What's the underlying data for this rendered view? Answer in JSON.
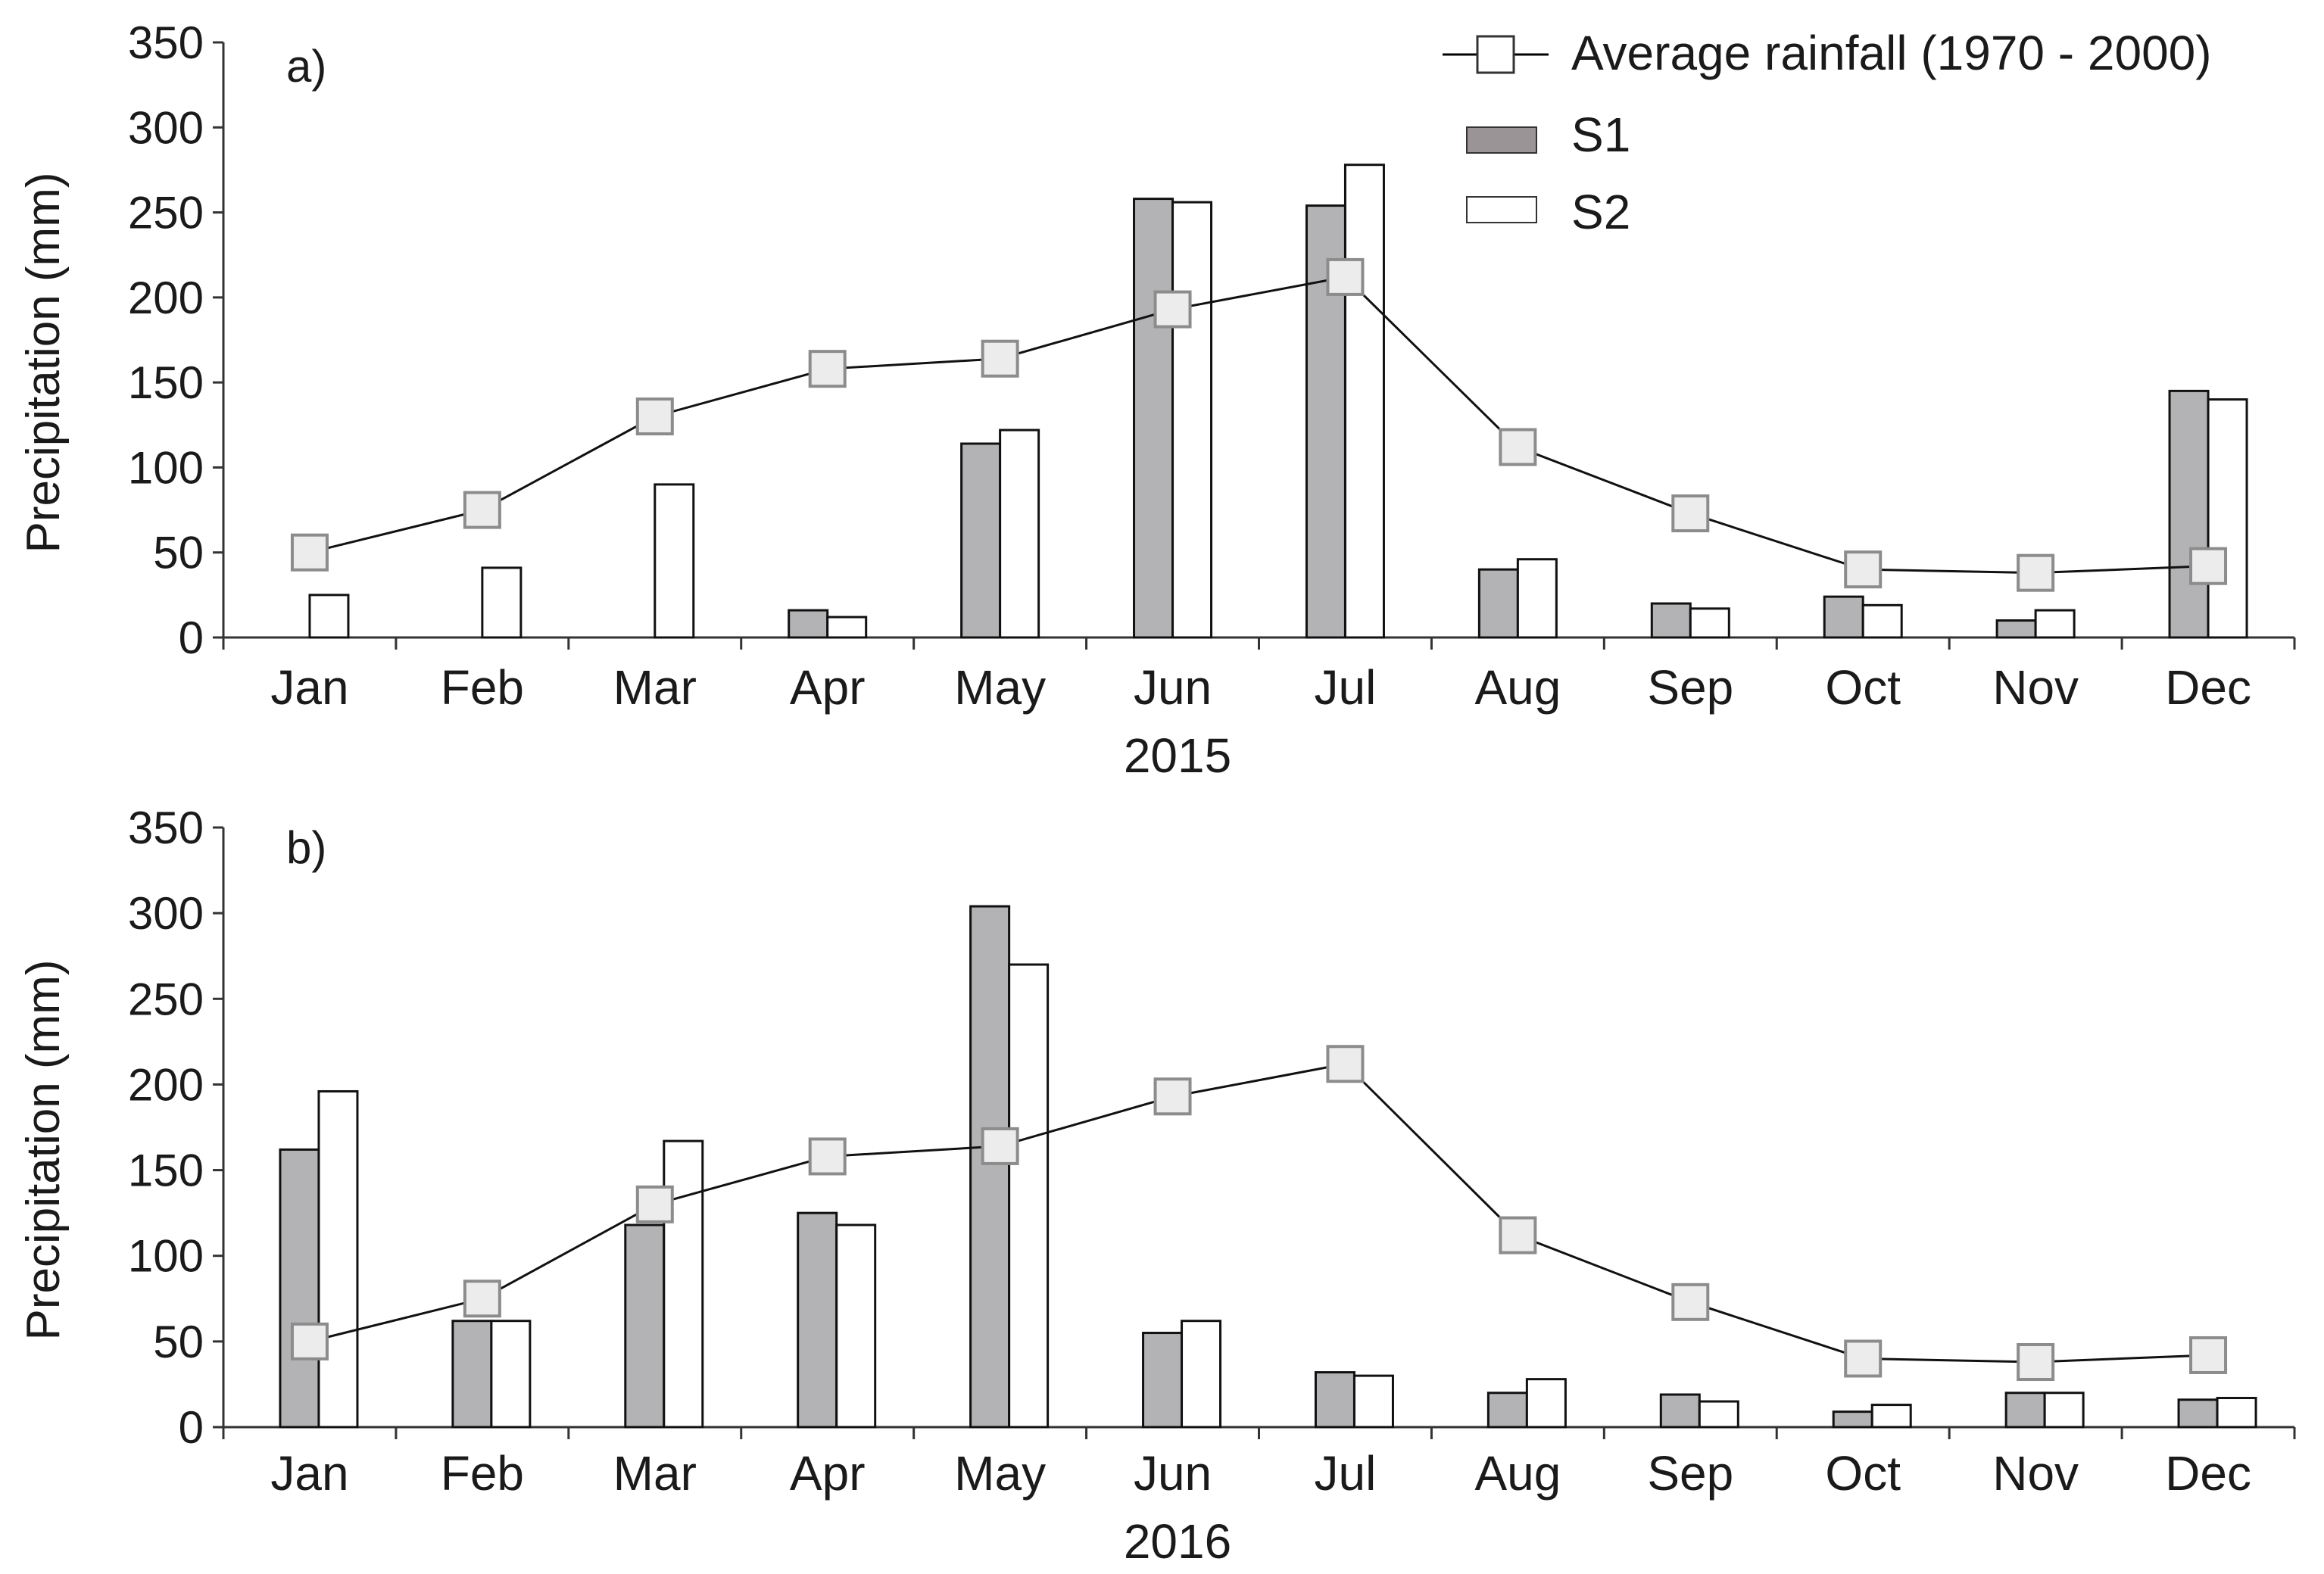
{
  "chart_data": [
    {
      "type": "bar",
      "panel": "a)",
      "xlabel": "2015",
      "ylabel": "Precipitation (mm)",
      "ylim": [
        0,
        350
      ],
      "yticks": [
        0,
        50,
        100,
        150,
        200,
        250,
        300,
        350
      ],
      "categories": [
        "Jan",
        "Feb",
        "Mar",
        "Apr",
        "May",
        "Jun",
        "Jul",
        "Aug",
        "Sep",
        "Oct",
        "Nov",
        "Dec"
      ],
      "series": [
        {
          "name": "S1",
          "kind": "bar",
          "color": "#b3b3b5",
          "values": [
            0,
            0,
            0,
            16,
            114,
            258,
            254,
            40,
            20,
            24,
            10,
            145
          ]
        },
        {
          "name": "S2",
          "kind": "bar",
          "color": "#ffffff",
          "values": [
            25,
            41,
            90,
            12,
            122,
            256,
            278,
            46,
            17,
            19,
            16,
            140
          ]
        },
        {
          "name": "Average rainfall (1970 - 2000)",
          "kind": "line",
          "color": "#000000",
          "values": [
            50,
            75,
            130,
            158,
            164,
            193,
            212,
            112,
            73,
            40,
            38,
            42
          ]
        }
      ],
      "grid": false,
      "legend": "top-right"
    },
    {
      "type": "bar",
      "panel": "b)",
      "xlabel": "2016",
      "ylabel": "Precipitation (mm)",
      "ylim": [
        0,
        350
      ],
      "yticks": [
        0,
        50,
        100,
        150,
        200,
        250,
        300,
        350
      ],
      "categories": [
        "Jan",
        "Feb",
        "Mar",
        "Apr",
        "May",
        "Jun",
        "Jul",
        "Aug",
        "Sep",
        "Oct",
        "Nov",
        "Dec"
      ],
      "series": [
        {
          "name": "S1",
          "kind": "bar",
          "color": "#b3b3b5",
          "values": [
            162,
            62,
            118,
            125,
            304,
            55,
            32,
            20,
            19,
            9,
            20,
            16
          ]
        },
        {
          "name": "S2",
          "kind": "bar",
          "color": "#ffffff",
          "values": [
            196,
            62,
            167,
            118,
            270,
            62,
            30,
            28,
            15,
            13,
            20,
            17
          ]
        },
        {
          "name": "Average rainfall (1970 - 2000)",
          "kind": "line",
          "color": "#000000",
          "values": [
            50,
            75,
            130,
            158,
            164,
            193,
            212,
            112,
            73,
            40,
            38,
            42
          ]
        }
      ],
      "grid": false,
      "legend": "none"
    }
  ],
  "legend": {
    "items": [
      {
        "label": "Average rainfall (1970 - 2000)",
        "kind": "line-marker"
      },
      {
        "label": "S1",
        "kind": "swatch",
        "color": "#9a9496"
      },
      {
        "label": "S2",
        "kind": "swatch",
        "color": "#ffffff"
      }
    ]
  }
}
